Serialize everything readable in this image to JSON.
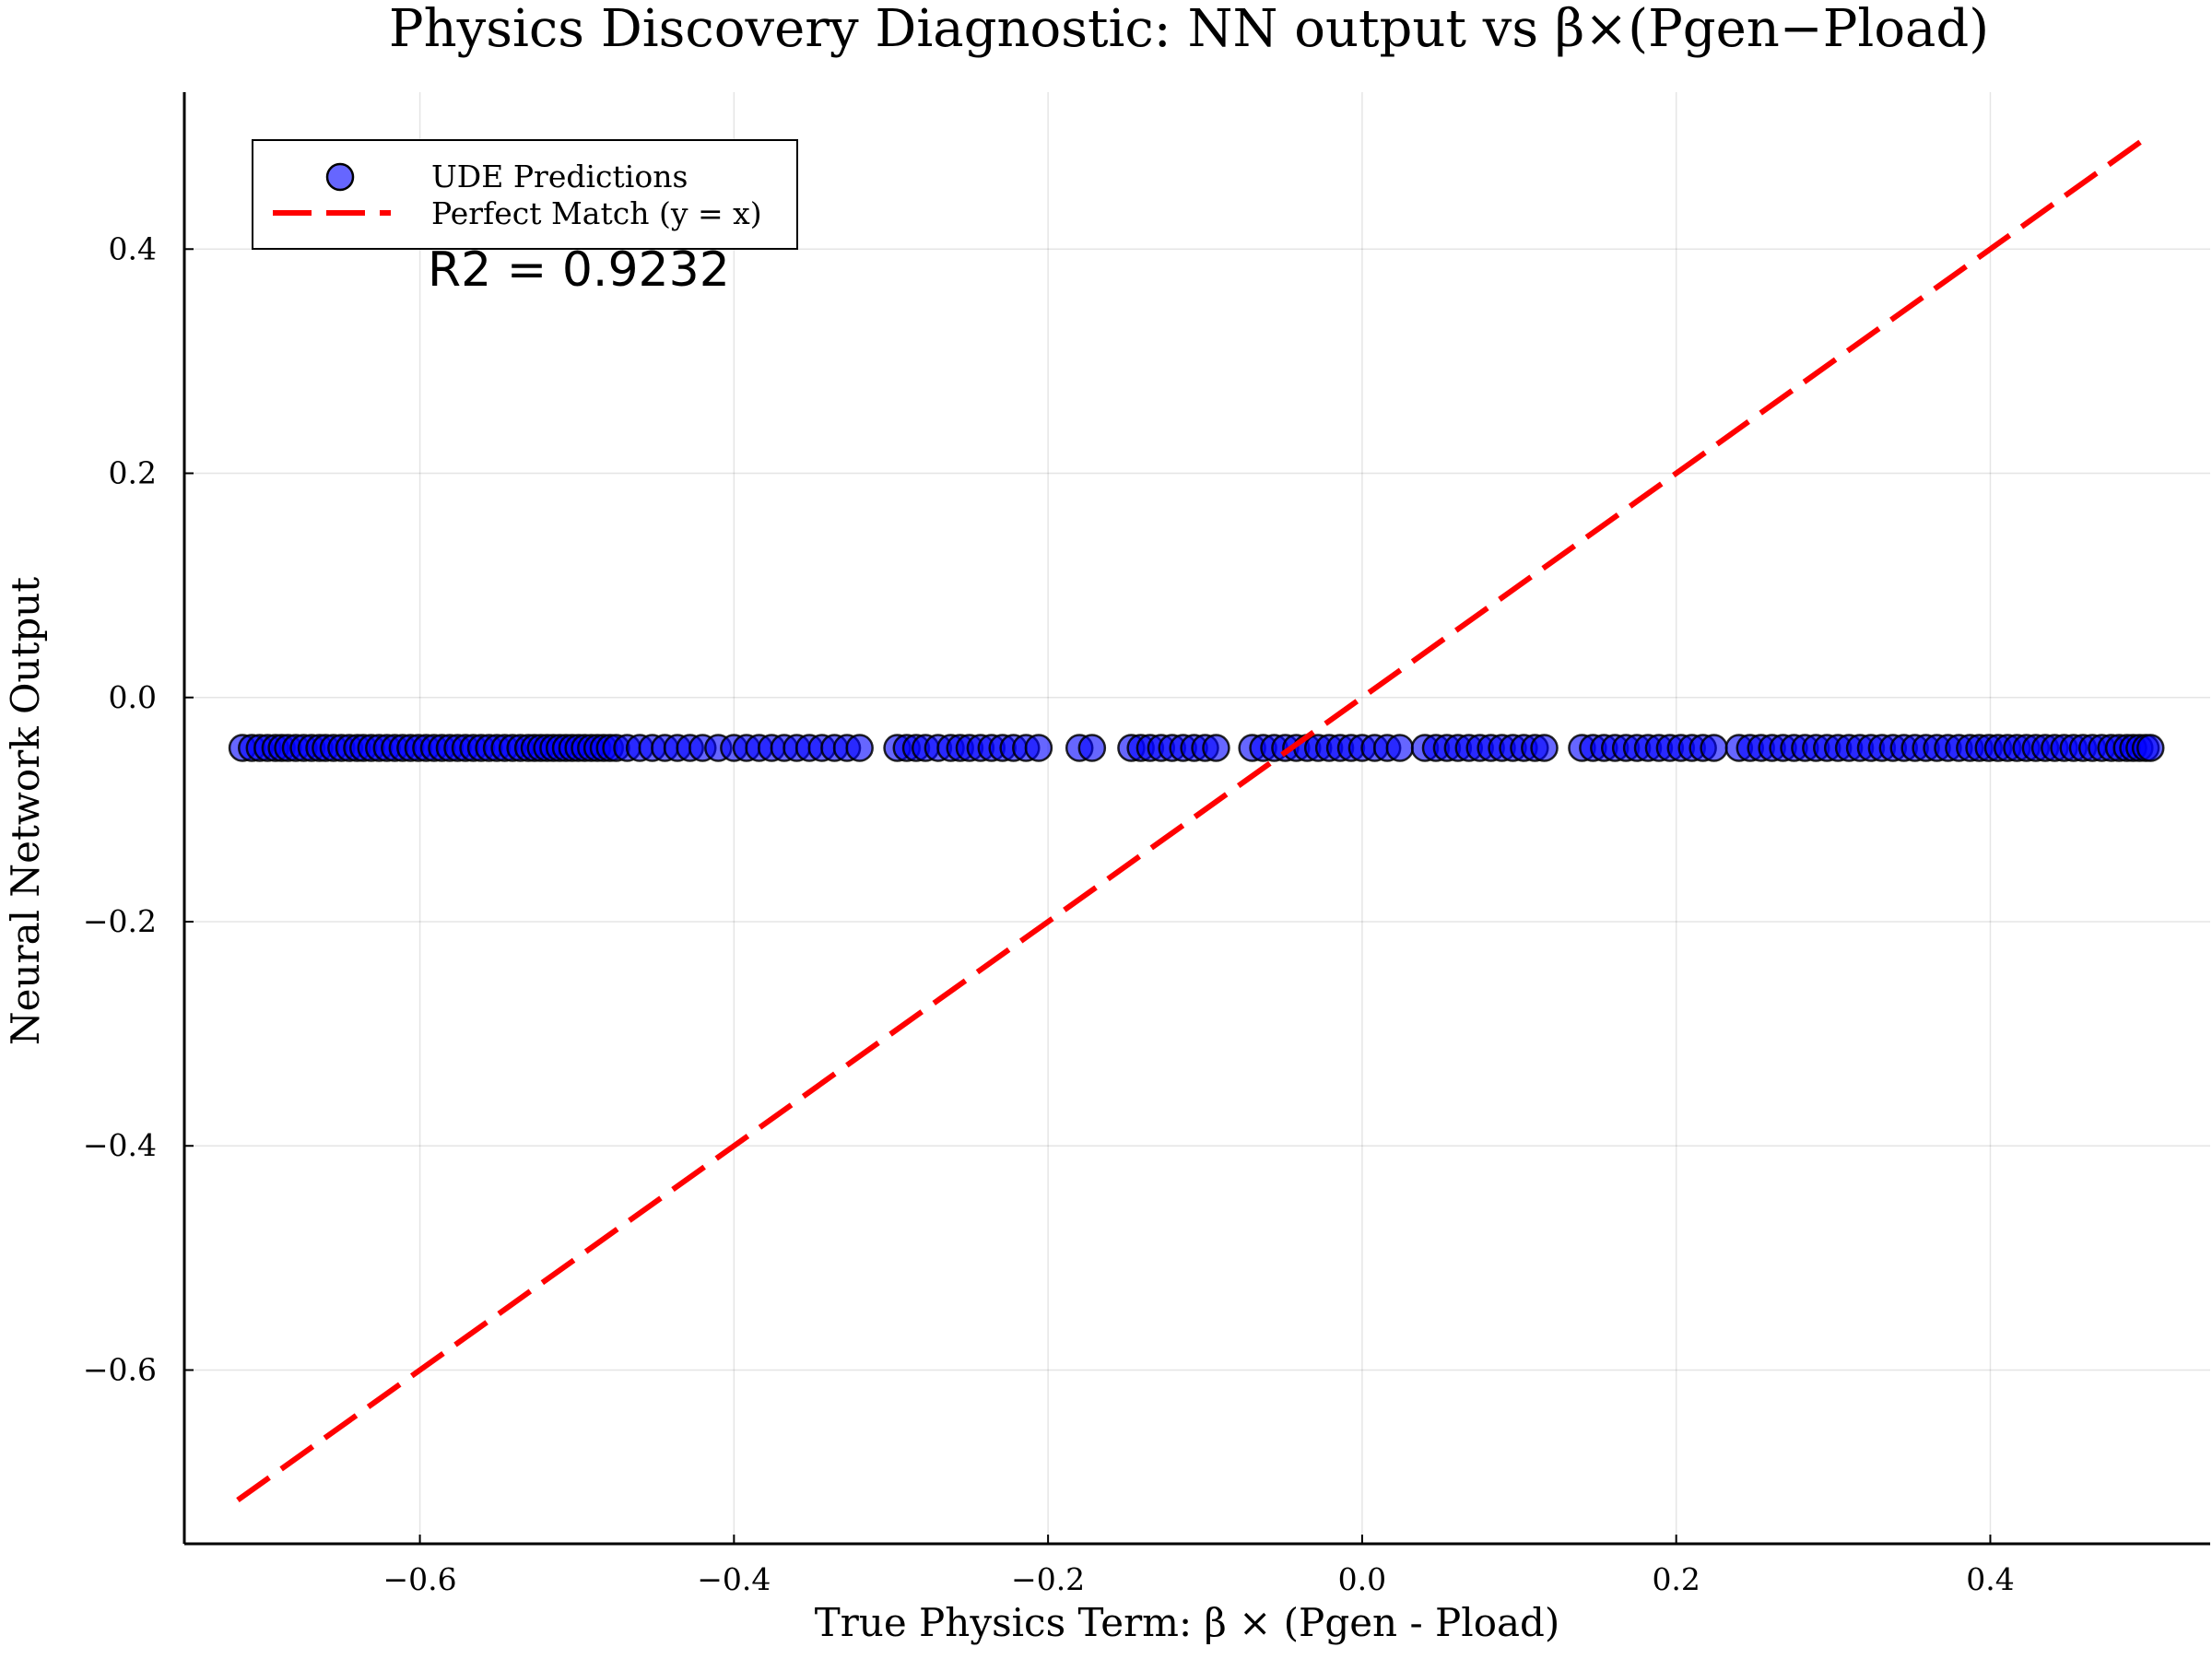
{
  "chart_data": {
    "type": "scatter",
    "title": "Physics Discovery Diagnostic: NN output vs β×(Pgen−Pload)",
    "xlabel": "True Physics Term: β × (Pgen - Pload)",
    "ylabel": "Neural Network Output",
    "xlim": [
      -0.75,
      0.54
    ],
    "ylim": [
      -0.755,
      0.54
    ],
    "xticks": [
      -0.6,
      -0.4,
      -0.2,
      0.0,
      0.2,
      0.4
    ],
    "yticks": [
      -0.6,
      -0.4,
      -0.2,
      0.0,
      0.2,
      0.4
    ],
    "xtick_labels": [
      "−0.6",
      "−0.4",
      "−0.2",
      "0.0",
      "0.2",
      "0.4"
    ],
    "ytick_labels": [
      "−0.6",
      "−0.4",
      "−0.2",
      "0.0",
      "0.2",
      "0.4"
    ],
    "grid": true,
    "legend_position": "top-left",
    "annotation": "R2 = 0.9232",
    "series": [
      {
        "name": "UDE Predictions",
        "kind": "scatter",
        "color": "#0000ff",
        "y_constant": -0.045,
        "x": [
          -0.713,
          -0.707,
          -0.702,
          -0.697,
          -0.692,
          -0.688,
          -0.684,
          -0.679,
          -0.674,
          -0.669,
          -0.664,
          -0.66,
          -0.655,
          -0.65,
          -0.645,
          -0.64,
          -0.636,
          -0.631,
          -0.626,
          -0.621,
          -0.616,
          -0.611,
          -0.606,
          -0.601,
          -0.596,
          -0.591,
          -0.586,
          -0.581,
          -0.576,
          -0.571,
          -0.566,
          -0.561,
          -0.556,
          -0.551,
          -0.546,
          -0.541,
          -0.536,
          -0.531,
          -0.527,
          -0.523,
          -0.519,
          -0.515,
          -0.511,
          -0.507,
          -0.503,
          -0.499,
          -0.495,
          -0.491,
          -0.487,
          -0.483,
          -0.479,
          -0.475,
          -0.468,
          -0.46,
          -0.452,
          -0.444,
          -0.436,
          -0.428,
          -0.42,
          -0.41,
          -0.4,
          -0.392,
          -0.384,
          -0.376,
          -0.368,
          -0.36,
          -0.352,
          -0.344,
          -0.336,
          -0.328,
          -0.32,
          -0.296,
          -0.29,
          -0.284,
          -0.278,
          -0.27,
          -0.262,
          -0.256,
          -0.25,
          -0.243,
          -0.236,
          -0.229,
          -0.222,
          -0.214,
          -0.206,
          -0.18,
          -0.172,
          -0.147,
          -0.141,
          -0.135,
          -0.128,
          -0.121,
          -0.114,
          -0.107,
          -0.1,
          -0.093,
          -0.07,
          -0.063,
          -0.056,
          -0.049,
          -0.042,
          -0.035,
          -0.028,
          -0.021,
          -0.014,
          -0.007,
          0.0,
          0.008,
          0.016,
          0.024,
          0.04,
          0.047,
          0.054,
          0.061,
          0.068,
          0.075,
          0.082,
          0.089,
          0.096,
          0.103,
          0.11,
          0.116,
          0.14,
          0.147,
          0.154,
          0.161,
          0.168,
          0.175,
          0.182,
          0.189,
          0.196,
          0.203,
          0.21,
          0.217,
          0.224,
          0.24,
          0.247,
          0.254,
          0.261,
          0.268,
          0.275,
          0.282,
          0.289,
          0.296,
          0.303,
          0.31,
          0.317,
          0.324,
          0.331,
          0.338,
          0.345,
          0.352,
          0.359,
          0.366,
          0.373,
          0.38,
          0.387,
          0.393,
          0.399,
          0.405,
          0.411,
          0.417,
          0.423,
          0.429,
          0.435,
          0.441,
          0.447,
          0.453,
          0.459,
          0.465,
          0.471,
          0.477,
          0.482,
          0.487,
          0.491,
          0.495,
          0.499,
          0.502
        ]
      },
      {
        "name": "Perfect Match (y = x)",
        "kind": "line",
        "color": "#ff0000",
        "style": "dashed",
        "x": [
          -0.716,
          0.503
        ],
        "y": [
          -0.716,
          0.503
        ]
      }
    ]
  }
}
